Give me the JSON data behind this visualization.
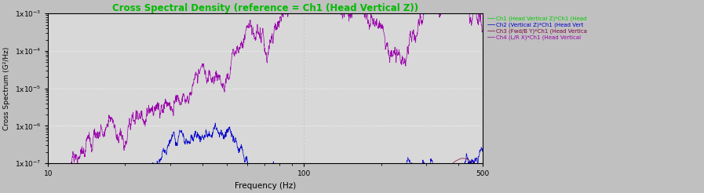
{
  "title": "Cross Spectral Density (reference = Ch1 (Head Vertical Z))",
  "title_color": "#00bb00",
  "xlabel": "Frequency (Hz)",
  "ylabel": "Cross Spectrum (G²/Hz)",
  "xlim": [
    10,
    500
  ],
  "ylim": [
    1e-07,
    0.001
  ],
  "background_color": "#c0c0c0",
  "plot_background_color": "#d8d8d8",
  "grid_color": "#ffffff",
  "legend_labels": [
    "Ch1 (Head Vertical Z)*Ch1 (Head",
    "Ch2 (Vertical Z)*Ch1 (Head Vert",
    "Ch3 (Fwd/B Y)*Ch1 (Head Vertica",
    "Ch4 (L/R X)*Ch1 (Head Vertical"
  ],
  "ch1_color": "#00cc00",
  "ch2_color": "#0000cc",
  "ch3_color": "#800040",
  "ch4_color": "#9900aa",
  "seed": 12345
}
